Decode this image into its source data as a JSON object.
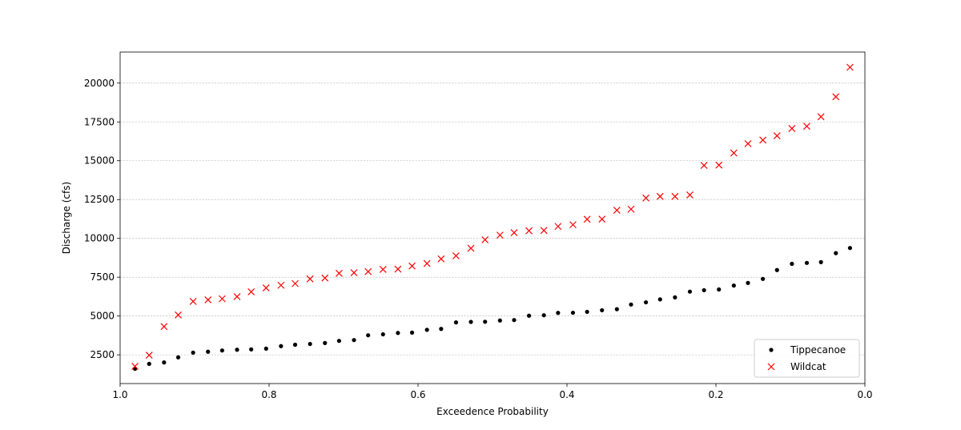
{
  "chart_data": {
    "type": "scatter",
    "title": "",
    "xlabel": "Exceedence Probability",
    "ylabel": "Discharge (cfs)",
    "xlim": [
      1.0,
      0.0
    ],
    "ylim": [
      650,
      22000
    ],
    "x_ticks": [
      1.0,
      0.8,
      0.6,
      0.4,
      0.2,
      0.0
    ],
    "x_tick_labels": [
      "1.0",
      "0.8",
      "0.6",
      "0.4",
      "0.2",
      "0.0"
    ],
    "y_ticks": [
      2500,
      5000,
      7500,
      10000,
      12500,
      15000,
      17500,
      20000
    ],
    "y_tick_labels": [
      "2500",
      "5000",
      "7500",
      "10000",
      "12500",
      "15000",
      "17500",
      "20000"
    ],
    "grid": "horizontal-dashed",
    "legend_position": "bottom-right",
    "x": [
      0.98,
      0.961,
      0.941,
      0.922,
      0.902,
      0.882,
      0.863,
      0.843,
      0.824,
      0.804,
      0.784,
      0.765,
      0.745,
      0.725,
      0.706,
      0.686,
      0.667,
      0.647,
      0.627,
      0.608,
      0.588,
      0.569,
      0.549,
      0.529,
      0.51,
      0.49,
      0.471,
      0.451,
      0.431,
      0.412,
      0.392,
      0.373,
      0.353,
      0.333,
      0.314,
      0.294,
      0.275,
      0.255,
      0.235,
      0.216,
      0.196,
      0.176,
      0.157,
      0.137,
      0.118,
      0.098,
      0.078,
      0.059,
      0.039,
      0.02
    ],
    "series": [
      {
        "name": "Tippecanoe",
        "marker": "dot",
        "color": "#000000",
        "values": [
          1600,
          1920,
          2010,
          2340,
          2640,
          2700,
          2780,
          2830,
          2850,
          2900,
          3060,
          3150,
          3200,
          3260,
          3400,
          3450,
          3760,
          3820,
          3910,
          3930,
          4110,
          4170,
          4590,
          4620,
          4630,
          4710,
          4740,
          5020,
          5050,
          5200,
          5210,
          5270,
          5370,
          5440,
          5740,
          5880,
          6070,
          6200,
          6570,
          6660,
          6710,
          6960,
          7130,
          7390,
          7960,
          8360,
          8420,
          8470,
          9050,
          9380
        ]
      },
      {
        "name": "Wildcat",
        "marker": "x",
        "color": "#ff0000",
        "values": [
          1760,
          2480,
          4320,
          5070,
          5940,
          6040,
          6110,
          6250,
          6560,
          6810,
          6980,
          7090,
          7390,
          7450,
          7750,
          7790,
          7860,
          8000,
          8020,
          8220,
          8380,
          8680,
          8880,
          9360,
          9910,
          10210,
          10370,
          10490,
          10510,
          10770,
          10880,
          11230,
          11240,
          11810,
          11880,
          12600,
          12700,
          12700,
          12800,
          14700,
          14720,
          15500,
          16100,
          16330,
          16610,
          17080,
          17220,
          17830,
          19120,
          21020
        ]
      }
    ]
  }
}
